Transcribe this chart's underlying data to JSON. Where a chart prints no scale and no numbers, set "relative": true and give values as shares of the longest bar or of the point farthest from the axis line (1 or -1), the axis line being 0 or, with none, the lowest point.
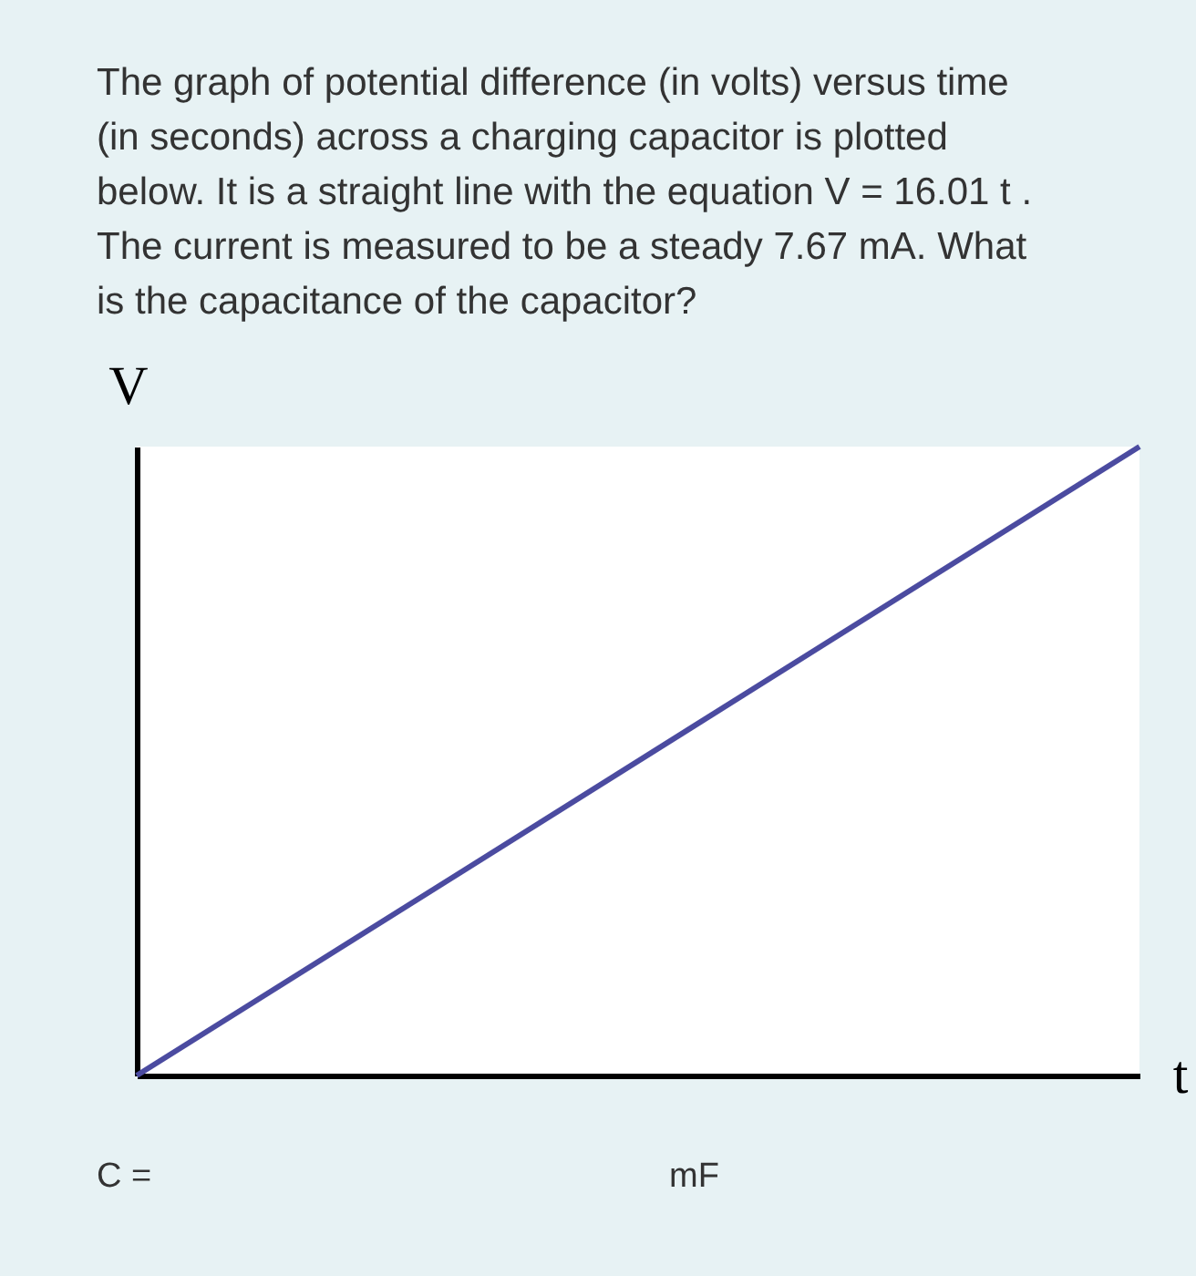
{
  "chart_data": {
    "type": "line",
    "title": "The graph of potential difference (in volts) versus time (in seconds) across a charging capacitor is plotted below. It is a straight line with the equation V = 16.01 t . The current is measured to be a steady 7.67 mA. What is the capacitance of the capacitor?",
    "xlabel": "t",
    "ylabel": "V",
    "categories": [
      null,
      null
    ],
    "relative": true,
    "series": [
      {
        "color": "#4b4ba0",
        "values": [
          0,
          1
        ]
      }
    ],
    "grid": false,
    "annotations": [
      "C =",
      "mF"
    ]
  }
}
